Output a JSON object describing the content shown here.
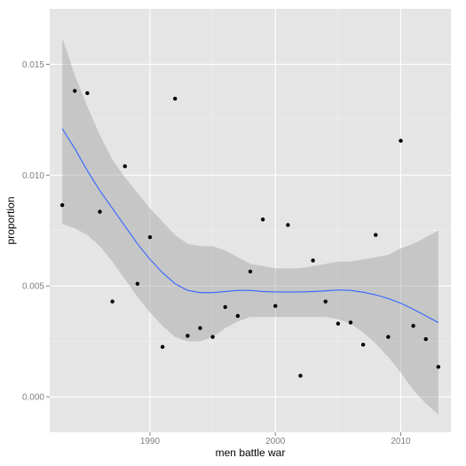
{
  "chart_data": {
    "type": "scatter",
    "title": "",
    "xlabel": "men battle war",
    "ylabel": "proportion",
    "xlim": [
      1982,
      2014
    ],
    "ylim": [
      -0.0016,
      0.0175
    ],
    "x_ticks": [
      1990,
      2000,
      2010
    ],
    "x_tick_labels": [
      "1990",
      "2000",
      "2010"
    ],
    "y_ticks": [
      0.0,
      0.005,
      0.01,
      0.015
    ],
    "y_tick_labels": [
      "0.000",
      "0.005",
      "0.010",
      "0.015"
    ],
    "grid": true,
    "legend": "none",
    "colors": {
      "panel": "#e5e5e5",
      "grid_major": "#ffffff",
      "grid_minor": "#f2f2f2",
      "point": "#000000",
      "smooth_line": "#3366ff",
      "ribbon": "#999999"
    },
    "points": {
      "x": [
        1983,
        1984,
        1985,
        1986,
        1987,
        1988,
        1989,
        1990,
        1991,
        1992,
        1993,
        1994,
        1995,
        1996,
        1997,
        1998,
        1999,
        2000,
        2001,
        2002,
        2003,
        2004,
        2005,
        2006,
        2007,
        2008,
        2009,
        2010,
        2011,
        2012,
        2013
      ],
      "y": [
        0.00865,
        0.0138,
        0.0137,
        0.00835,
        0.0043,
        0.0104,
        0.0051,
        0.0072,
        0.00225,
        0.01345,
        0.00275,
        0.0031,
        0.0027,
        0.00405,
        0.00365,
        0.00565,
        0.008,
        0.0041,
        0.00775,
        0.00095,
        0.00615,
        0.0043,
        0.0033,
        0.00335,
        0.00235,
        0.0073,
        0.0027,
        0.01155,
        0.0032,
        0.0026,
        0.00135
      ]
    },
    "smooth": {
      "x": [
        1983,
        1984,
        1985,
        1986,
        1987,
        1988,
        1989,
        1990,
        1991,
        1992,
        1993,
        1994,
        1995,
        1996,
        1997,
        1998,
        1999,
        2000,
        2001,
        2002,
        2003,
        2004,
        2005,
        2006,
        2007,
        2008,
        2009,
        2010,
        2011,
        2012,
        2013
      ],
      "y": [
        0.0121,
        0.0112,
        0.0102,
        0.0093,
        0.0085,
        0.0077,
        0.0069,
        0.0062,
        0.0056,
        0.0051,
        0.0048,
        0.0047,
        0.0047,
        0.00475,
        0.0048,
        0.0048,
        0.00475,
        0.00473,
        0.00473,
        0.00473,
        0.00475,
        0.00478,
        0.00482,
        0.0048,
        0.00472,
        0.0046,
        0.00443,
        0.00422,
        0.00395,
        0.00365,
        0.00335
      ],
      "lower": [
        0.0078,
        0.0076,
        0.0073,
        0.0068,
        0.0061,
        0.0053,
        0.0045,
        0.0038,
        0.0032,
        0.0027,
        0.0025,
        0.0025,
        0.0027,
        0.0031,
        0.0034,
        0.0036,
        0.0036,
        0.0036,
        0.0036,
        0.0036,
        0.0036,
        0.0036,
        0.0035,
        0.0033,
        0.0029,
        0.0024,
        0.0018,
        0.0011,
        0.0003,
        -0.0003,
        -0.0008
      ],
      "upper": [
        0.0162,
        0.0145,
        0.0131,
        0.0118,
        0.0107,
        0.0099,
        0.0092,
        0.0085,
        0.0079,
        0.0073,
        0.0069,
        0.0068,
        0.0068,
        0.0066,
        0.0063,
        0.006,
        0.0059,
        0.0058,
        0.0058,
        0.0058,
        0.0059,
        0.006,
        0.0061,
        0.0061,
        0.0062,
        0.0063,
        0.0064,
        0.0067,
        0.0069,
        0.0072,
        0.0075
      ]
    }
  }
}
